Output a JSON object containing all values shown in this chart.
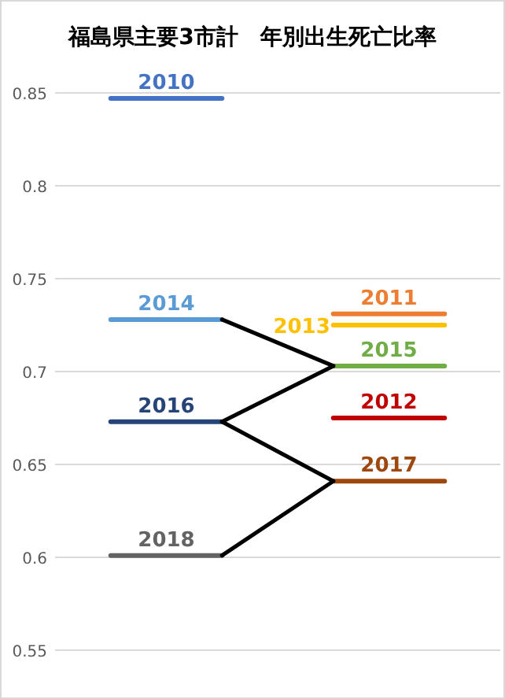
{
  "chart_data": {
    "type": "line",
    "title": "福島県主要3市計　年別出生死亡比率",
    "categories": [
      null,
      null,
      null,
      null
    ],
    "ylim": [
      0.55,
      0.85
    ],
    "yticks": [
      0.55,
      0.6,
      0.65,
      0.7,
      0.75,
      0.8,
      0.85
    ],
    "grid": "y",
    "legend": false,
    "marker": "none",
    "line_style": "solid",
    "series": [
      {
        "name": "2010",
        "color": "#4472c4",
        "values": [
          0.847,
          0.847,
          null,
          null
        ]
      },
      {
        "name": "2014",
        "color": "#5b9bd5",
        "values": [
          0.728,
          0.728,
          null,
          null
        ]
      },
      {
        "name": "2016",
        "color": "#264478",
        "values": [
          0.673,
          0.673,
          null,
          null
        ]
      },
      {
        "name": "2018",
        "color": "#636363",
        "values": [
          0.601,
          0.601,
          null,
          null
        ]
      },
      {
        "name": "2011",
        "color": "#ed7d31",
        "values": [
          null,
          null,
          0.731,
          0.731
        ]
      },
      {
        "name": "2013",
        "color": "#ffc000",
        "values": [
          null,
          null,
          0.725,
          0.725
        ]
      },
      {
        "name": "2015",
        "color": "#70ad47",
        "values": [
          null,
          null,
          0.703,
          0.703
        ]
      },
      {
        "name": "2012",
        "color": "#c00000",
        "values": [
          null,
          null,
          0.675,
          0.675
        ]
      },
      {
        "name": "2017",
        "color": "#9e480e",
        "values": [
          null,
          null,
          0.641,
          0.641
        ]
      },
      {
        "color": "#000000",
        "values": [
          null,
          0.728,
          0.703,
          null
        ]
      },
      {
        "color": "#000000",
        "values": [
          null,
          0.673,
          0.703,
          null
        ]
      },
      {
        "color": "#000000",
        "values": [
          null,
          0.673,
          0.641,
          null
        ]
      },
      {
        "color": "#000000",
        "values": [
          null,
          0.601,
          0.641,
          null
        ]
      }
    ]
  }
}
